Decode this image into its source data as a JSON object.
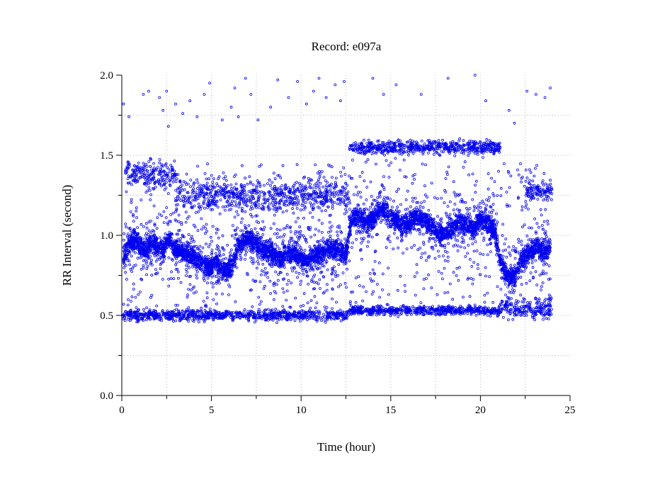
{
  "chart_data": {
    "type": "scatter",
    "title": "Record:  e097a",
    "xlabel": "Time (hour)",
    "ylabel": "RR Interval (second)",
    "xlim": [
      0,
      25
    ],
    "ylim": [
      0,
      2.0
    ],
    "x_ticks": [
      0,
      5,
      10,
      15,
      20,
      25
    ],
    "x_tick_labels": [
      "0",
      "5",
      "10",
      "15",
      "20",
      "25"
    ],
    "y_ticks": [
      0.0,
      0.5,
      1.0,
      1.5,
      2.0
    ],
    "y_tick_labels": [
      "0.0",
      "0.5",
      "1.0",
      "1.5",
      "2.0"
    ],
    "grid": true,
    "marker": "open-circle",
    "marker_color": "#0000ee",
    "series": [
      {
        "x": [
          0.1,
          0.3,
          0.5,
          0.7,
          0.9,
          1.1,
          1.3,
          1.5,
          1.7,
          1.9,
          2.1,
          2.3,
          2.5,
          2.7,
          2.9,
          3.3,
          3.7,
          4.1,
          4.5,
          4.9,
          5.3,
          5.7,
          6.1,
          6.5,
          6.9,
          7.3,
          7.7,
          8.1,
          8.5,
          8.9,
          9.3,
          9.7,
          10.1,
          10.5,
          10.9,
          11.3,
          11.7,
          12.1,
          12.5,
          12.8,
          13.2,
          13.6,
          14.0,
          14.4,
          14.8,
          15.2,
          15.6,
          16.0,
          16.4,
          16.8,
          17.2,
          17.6,
          18.0,
          18.4,
          18.8,
          19.2,
          19.6,
          20.0,
          20.4,
          20.8,
          21.2,
          21.6,
          22.0,
          22.4,
          22.8,
          23.2,
          23.6,
          23.9
        ],
        "y": [
          0.88,
          0.92,
          0.95,
          0.97,
          0.95,
          0.92,
          0.9,
          0.93,
          0.96,
          0.94,
          0.92,
          0.9,
          0.96,
          0.98,
          0.91,
          0.9,
          0.88,
          0.86,
          0.82,
          0.8,
          0.84,
          0.78,
          0.8,
          0.94,
          0.98,
          0.96,
          0.92,
          0.9,
          0.88,
          0.86,
          0.9,
          0.88,
          0.84,
          0.86,
          0.88,
          0.9,
          0.92,
          0.9,
          0.88,
          1.1,
          1.12,
          1.08,
          1.1,
          1.16,
          1.14,
          1.1,
          1.06,
          1.08,
          1.12,
          1.1,
          1.06,
          1.02,
          1.0,
          1.04,
          1.08,
          1.06,
          1.04,
          1.1,
          1.08,
          1.02,
          0.8,
          0.74,
          0.76,
          0.86,
          0.9,
          0.92,
          0.9,
          0.92
        ]
      }
    ],
    "bands": [
      {
        "x_from": 0.0,
        "x_to": 12.7,
        "y_center": 0.5,
        "spread": 0.05
      },
      {
        "x_from": 0.2,
        "x_to": 3.0,
        "y_center": 1.38,
        "spread": 0.12
      },
      {
        "x_from": 3.0,
        "x_to": 12.7,
        "y_center": 1.25,
        "spread": 0.15
      },
      {
        "x_from": 12.7,
        "x_to": 21.1,
        "y_center": 0.53,
        "spread": 0.04
      },
      {
        "x_from": 12.7,
        "x_to": 21.1,
        "y_center": 1.55,
        "spread": 0.06
      },
      {
        "x_from": 21.1,
        "x_to": 24.0,
        "y_center": 0.55,
        "spread": 0.1
      },
      {
        "x_from": 22.5,
        "x_to": 24.0,
        "y_center": 1.28,
        "spread": 0.08
      }
    ],
    "outliers": [
      [
        0.1,
        1.82
      ],
      [
        0.4,
        1.74
      ],
      [
        1.2,
        1.88
      ],
      [
        1.5,
        1.9
      ],
      [
        2.1,
        1.86
      ],
      [
        2.3,
        1.78
      ],
      [
        2.5,
        1.9
      ],
      [
        2.6,
        1.68
      ],
      [
        3.0,
        1.82
      ],
      [
        3.4,
        1.76
      ],
      [
        3.8,
        1.84
      ],
      [
        4.2,
        1.74
      ],
      [
        4.6,
        1.88
      ],
      [
        4.9,
        1.95
      ],
      [
        5.6,
        1.72
      ],
      [
        6.1,
        1.8
      ],
      [
        6.3,
        1.92
      ],
      [
        6.5,
        1.74
      ],
      [
        6.9,
        1.98
      ],
      [
        7.2,
        1.88
      ],
      [
        7.6,
        1.72
      ],
      [
        8.3,
        1.8
      ],
      [
        8.7,
        1.97
      ],
      [
        9.3,
        1.86
      ],
      [
        9.8,
        1.96
      ],
      [
        10.3,
        1.82
      ],
      [
        10.7,
        1.9
      ],
      [
        11.0,
        1.98
      ],
      [
        11.4,
        1.86
      ],
      [
        11.9,
        1.94
      ],
      [
        12.2,
        1.84
      ],
      [
        12.4,
        1.96
      ],
      [
        14.0,
        1.98
      ],
      [
        14.6,
        1.88
      ],
      [
        15.3,
        1.94
      ],
      [
        16.7,
        1.88
      ],
      [
        18.2,
        1.98
      ],
      [
        19.7,
        2.0
      ],
      [
        20.3,
        1.84
      ],
      [
        22.6,
        1.9
      ],
      [
        23.1,
        1.88
      ],
      [
        23.6,
        1.86
      ],
      [
        23.9,
        1.92
      ],
      [
        21.6,
        1.78
      ],
      [
        21.9,
        1.7
      ]
    ]
  }
}
